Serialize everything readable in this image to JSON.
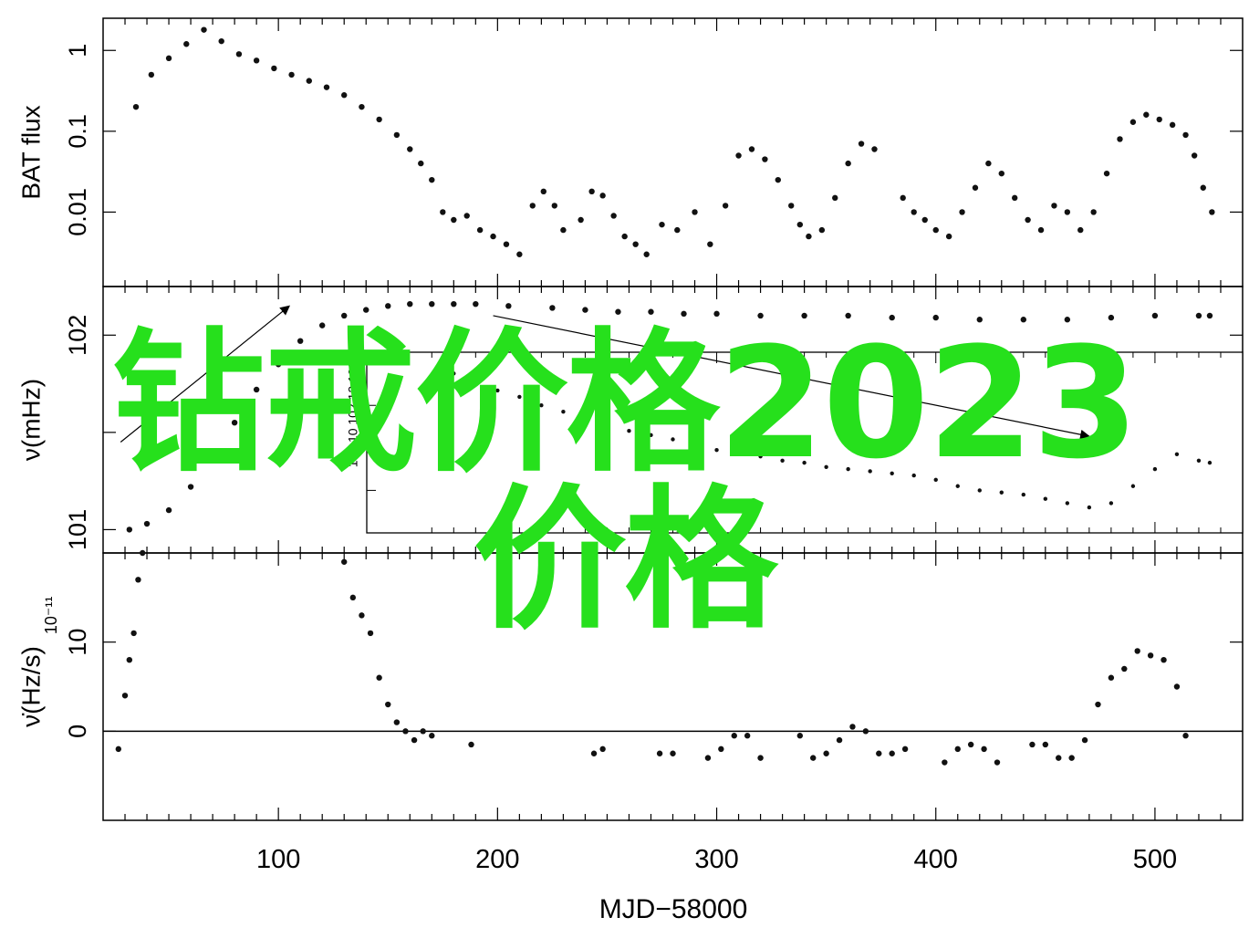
{
  "chart_data": [
    {
      "type": "scatter",
      "panel": "top",
      "ylabel": "BAT flux",
      "y_scale": "log",
      "ylim": [
        0.0012,
        2.5
      ],
      "y_ticks": [
        {
          "value": 1,
          "label": "1"
        },
        {
          "value": 0.1,
          "label": "0.1"
        },
        {
          "value": 0.01,
          "label": "0.01"
        }
      ],
      "series": [
        {
          "x": [
            35,
            42,
            50,
            58,
            66,
            74,
            82,
            90,
            98,
            106,
            114,
            122,
            130,
            138,
            146,
            154,
            160,
            165,
            170,
            175,
            180,
            186,
            192,
            198,
            204,
            210,
            216,
            221,
            226,
            230,
            238,
            243,
            248,
            253,
            258,
            263,
            268,
            275,
            282,
            290,
            297,
            304,
            310,
            316,
            322,
            328,
            334,
            338,
            342,
            348,
            354,
            360,
            366,
            372,
            385,
            390,
            395,
            400,
            406,
            412,
            418,
            424,
            430,
            436,
            442,
            448,
            454,
            460,
            466,
            472,
            478,
            484,
            490,
            496,
            502,
            508,
            514,
            518,
            522,
            526
          ],
          "y": [
            0.2,
            0.5,
            0.8,
            1.2,
            1.8,
            1.3,
            0.9,
            0.75,
            0.6,
            0.5,
            0.42,
            0.35,
            0.28,
            0.2,
            0.14,
            0.09,
            0.06,
            0.04,
            0.025,
            0.01,
            0.008,
            0.009,
            0.006,
            0.005,
            0.004,
            0.003,
            0.012,
            0.018,
            0.012,
            0.006,
            0.008,
            0.018,
            0.016,
            0.009,
            0.005,
            0.004,
            0.003,
            0.007,
            0.006,
            0.01,
            0.004,
            0.012,
            0.05,
            0.06,
            0.045,
            0.025,
            0.012,
            0.007,
            0.005,
            0.006,
            0.015,
            0.04,
            0.07,
            0.06,
            0.015,
            0.01,
            0.008,
            0.006,
            0.005,
            0.01,
            0.02,
            0.04,
            0.03,
            0.015,
            0.008,
            0.006,
            0.012,
            0.01,
            0.006,
            0.01,
            0.03,
            0.08,
            0.13,
            0.16,
            0.14,
            0.12,
            0.09,
            0.05,
            0.02,
            0.01
          ]
        }
      ]
    },
    {
      "type": "scatter",
      "panel": "middle",
      "ylabel": "ν(mHz)",
      "ylim": [
        100.88,
        102.25
      ],
      "y_ticks": [
        {
          "value": 101,
          "label": "101"
        },
        {
          "value": 101.5,
          "label": ""
        },
        {
          "value": 102,
          "label": "102"
        }
      ],
      "series": [
        {
          "x": [
            32,
            40,
            50,
            60,
            70,
            80,
            90,
            100,
            110,
            120,
            130,
            140,
            150,
            160,
            170,
            180,
            190,
            205,
            225,
            240,
            255,
            270,
            285,
            300,
            320,
            340,
            360,
            380,
            400,
            420,
            440,
            460,
            480,
            500,
            520,
            525
          ],
          "y": [
            101.0,
            101.03,
            101.1,
            101.22,
            101.38,
            101.55,
            101.72,
            101.85,
            101.97,
            102.05,
            102.1,
            102.13,
            102.15,
            102.16,
            102.16,
            102.16,
            102.16,
            102.15,
            102.14,
            102.13,
            102.12,
            102.12,
            102.11,
            102.11,
            102.1,
            102.1,
            102.1,
            102.09,
            102.09,
            102.08,
            102.08,
            102.08,
            102.09,
            102.1,
            102.1,
            102.1
          ]
        }
      ],
      "arrows": [
        {
          "from": [
            28,
            101.45
          ],
          "to": [
            105,
            102.15
          ]
        },
        {
          "from": [
            198,
            102.1
          ],
          "to": [
            470,
            101.48
          ]
        }
      ],
      "inset": {
        "y_tick_labels": [
          "102.14",
          "102.12",
          "102.10"
        ],
        "series": {
          "x": [
            170,
            180,
            190,
            200,
            210,
            220,
            230,
            240,
            250,
            260,
            270,
            280,
            290,
            300,
            310,
            320,
            330,
            340,
            350,
            360,
            370,
            380,
            390,
            400,
            410,
            420,
            430,
            440,
            450,
            460,
            470,
            480,
            490,
            500,
            510,
            520,
            525
          ],
          "y": [
            102.125,
            102.135,
            102.13,
            102.127,
            102.124,
            102.12,
            102.117,
            102.114,
            102.111,
            102.108,
            102.106,
            102.104,
            102.101,
            102.099,
            102.097,
            102.096,
            102.094,
            102.093,
            102.091,
            102.09,
            102.089,
            102.088,
            102.087,
            102.085,
            102.082,
            102.08,
            102.079,
            102.078,
            102.076,
            102.074,
            102.072,
            102.074,
            102.082,
            102.09,
            102.097,
            102.094,
            102.093
          ]
        }
      }
    },
    {
      "type": "scatter",
      "panel": "bottom",
      "ylabel": "ν̇(Hz/s)",
      "y_multiplier": "10⁻¹¹",
      "ylim": [
        -10,
        20
      ],
      "y_ticks": [
        {
          "value": 0,
          "label": "0"
        },
        {
          "value": 10,
          "label": "10"
        }
      ],
      "zero_line": true,
      "series": [
        {
          "x": [
            27,
            30,
            32,
            34,
            36,
            38,
            130,
            134,
            138,
            142,
            146,
            150,
            154,
            158,
            162,
            166,
            170,
            188,
            244,
            248,
            274,
            280,
            296,
            302,
            308,
            314,
            320,
            338,
            344,
            350,
            356,
            362,
            368,
            374,
            380,
            386,
            404,
            410,
            416,
            422,
            428,
            444,
            450,
            456,
            462,
            468,
            474,
            480,
            486,
            492,
            498,
            504,
            510,
            514
          ],
          "y": [
            -2,
            4,
            8,
            11,
            17,
            20,
            19,
            15,
            13,
            11,
            6,
            3,
            1,
            0,
            -1,
            0,
            -0.5,
            -1.5,
            -2.5,
            -2,
            -2.5,
            -2.5,
            -3,
            -2,
            -0.5,
            -0.5,
            -3,
            -0.5,
            -3,
            -2.5,
            -1,
            0.5,
            0,
            -2.5,
            -2.5,
            -2,
            -3.5,
            -2,
            -1.5,
            -2,
            -3.5,
            -1.5,
            -1.5,
            -3,
            -3,
            -1,
            3,
            6,
            7,
            9,
            8.5,
            8,
            5,
            -0.5
          ]
        }
      ]
    }
  ],
  "shared_x": {
    "xlabel": "MJD−58000",
    "xlim": [
      20,
      540
    ],
    "x_ticks": [
      {
        "value": 100,
        "label": "100"
      },
      {
        "value": 200,
        "label": "200"
      },
      {
        "value": 300,
        "label": "300"
      },
      {
        "value": 400,
        "label": "400"
      },
      {
        "value": 500,
        "label": "500"
      }
    ]
  },
  "overlay": {
    "line1": "钻戒价格2023",
    "line2": "价格",
    "color": "#26e01c"
  }
}
